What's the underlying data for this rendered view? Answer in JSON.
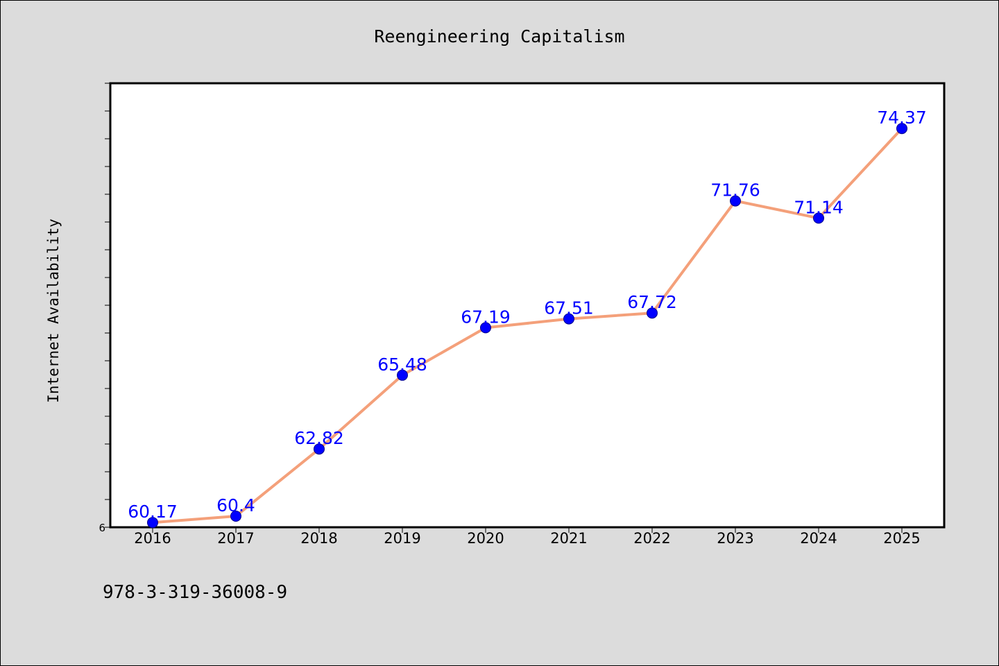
{
  "chart_data": {
    "type": "line",
    "title": "Reengineering Capitalism",
    "xlabel": "",
    "ylabel": "Internet Availability",
    "categories": [
      "2016",
      "2017",
      "2018",
      "2019",
      "2020",
      "2021",
      "2022",
      "2023",
      "2024",
      "2025"
    ],
    "series": [
      {
        "values": [
          60.17,
          60.4,
          62.82,
          65.48,
          67.19,
          67.51,
          67.72,
          71.76,
          71.14,
          74.37
        ],
        "labels": [
          "60.17",
          "60.4",
          "62.82",
          "65.48",
          "67.19",
          "67.51",
          "67.72",
          "71.76",
          "71.14",
          "74.37"
        ],
        "line_color": "#f4a07a",
        "marker_color": "#0000ff"
      }
    ],
    "ylim": [
      60,
      76
    ],
    "y_tick_label": "6",
    "grid": false,
    "legend": "none"
  },
  "footer": {
    "isbn": "978-3-319-36008-9"
  },
  "colors": {
    "background": "#dcdcdc",
    "plot_area": "#ffffff",
    "line": "#f4a07a",
    "marker": "#0000ff",
    "data_label": "#0000ff"
  }
}
